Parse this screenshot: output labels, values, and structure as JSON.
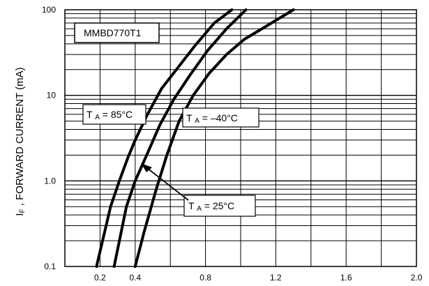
{
  "chart_data": {
    "type": "line",
    "title": "",
    "xlabel": "",
    "ylabel": "I F , FORWARD CURRENT (mA)",
    "xlim": [
      0,
      2.0
    ],
    "ylim": [
      0.1,
      100
    ],
    "y_scale": "log",
    "grid": true,
    "x_ticks": [
      {
        "value": 0.2,
        "label": "0.2"
      },
      {
        "value": 0.4,
        "label": "0.4"
      },
      {
        "value": 0.8,
        "label": "0.8"
      },
      {
        "value": 1.2,
        "label": "1.2"
      },
      {
        "value": 1.6,
        "label": "1.6"
      },
      {
        "value": 2.0,
        "label": "2.0"
      }
    ],
    "y_ticks": [
      {
        "value": 0.1,
        "label": "0.1"
      },
      {
        "value": 1,
        "label": "1.0"
      },
      {
        "value": 10,
        "label": "10"
      },
      {
        "value": 100,
        "label": "100"
      }
    ],
    "annotations": [
      {
        "id": "part",
        "text": "MMBD770T1"
      },
      {
        "id": "t85",
        "text": "T A = 85°C"
      },
      {
        "id": "t_40",
        "text": "T A = –40°C"
      },
      {
        "id": "t25",
        "text": "T A = 25°C"
      }
    ],
    "series": [
      {
        "x": [
          0.18,
          0.26,
          0.31,
          0.36,
          0.4,
          0.47,
          0.55,
          0.65,
          0.74,
          0.85,
          0.95
        ],
        "y": [
          0.1,
          0.5,
          1.0,
          1.9,
          3.0,
          6.0,
          12.0,
          22.0,
          38.0,
          70.0,
          100.0
        ]
      },
      {
        "x": [
          0.28,
          0.35,
          0.4,
          0.47,
          0.54,
          0.62,
          0.71,
          0.81,
          0.92,
          1.03
        ],
        "y": [
          0.1,
          0.5,
          1.0,
          2.1,
          4.5,
          9.0,
          17.0,
          33.0,
          60.0,
          100.0
        ]
      },
      {
        "x": [
          0.4,
          0.45,
          0.52,
          0.58,
          0.65,
          0.73,
          0.82,
          0.92,
          1.02,
          1.15,
          1.3
        ],
        "y": [
          0.1,
          0.25,
          0.8,
          2.0,
          5.0,
          10.0,
          18.0,
          30.0,
          45.0,
          65.0,
          100.0
        ]
      }
    ],
    "colors": {
      "background": "#ffffff",
      "axis": "#000000",
      "grid": "#000000",
      "series": "#000000"
    }
  }
}
